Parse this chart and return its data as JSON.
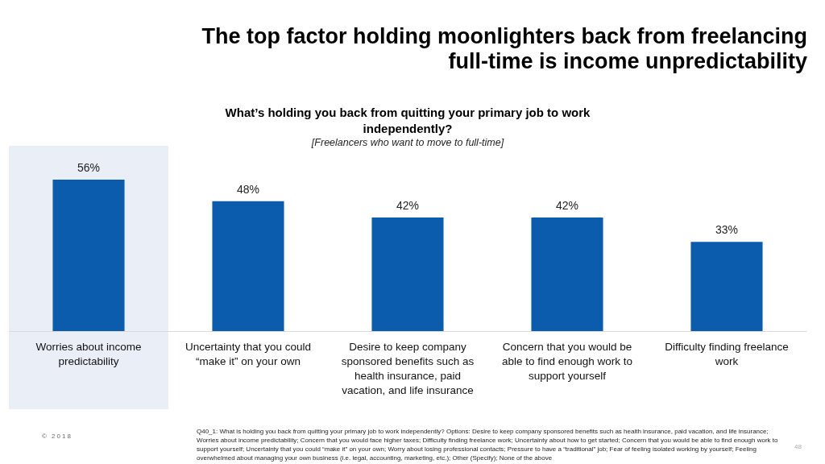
{
  "chart_data": {
    "type": "bar",
    "title": "The top factor holding moonlighters back from freelancing full-time is income unpredictability",
    "subtitle": "What’s holding you back from quitting your primary job to work independently?",
    "categories": [
      "Worries about income predictability",
      "Uncertainty that you could “make it” on your own",
      "Desire to keep company sponsored benefits such as health insurance, paid vacation, and life insurance",
      "Concern that you would be able to find enough work to support yourself",
      "Difficulty finding freelance work"
    ],
    "values": [
      56,
      48,
      42,
      42,
      33
    ],
    "value_labels": [
      "56%",
      "48%",
      "42%",
      "42%",
      "33%"
    ],
    "color": "#0b5cad",
    "bands": [
      {
        "axis": "x",
        "from": "Worries about income predictability",
        "to": "Worries about income predictability",
        "color": "#eaeef6"
      }
    ],
    "annotations": [
      "[Freelancers who want to move to full-time]",
      "Q40_1: What is holding you back from quitting your primary job to work independently? Options: Desire to keep company sponsored benefits such as health insurance, paid vacation, and life insurance; Worries about income predictability; Concern that you would face higher taxes; Difficulty finding freelance work; Uncertainty about how to get started; Concern that you would be able to find enough work to support yourself; Uncertainty that you could “make it” on your own; Worry about losing professional contacts; Pressure to have a “traditional” job; Fear of feeling isolated working by yourself; Feeling overwhelmed about managing your own business (i.e. legal, accounting, marketing, etc.); Other (Specify); None of the above",
      "© 2018",
      "48"
    ]
  }
}
